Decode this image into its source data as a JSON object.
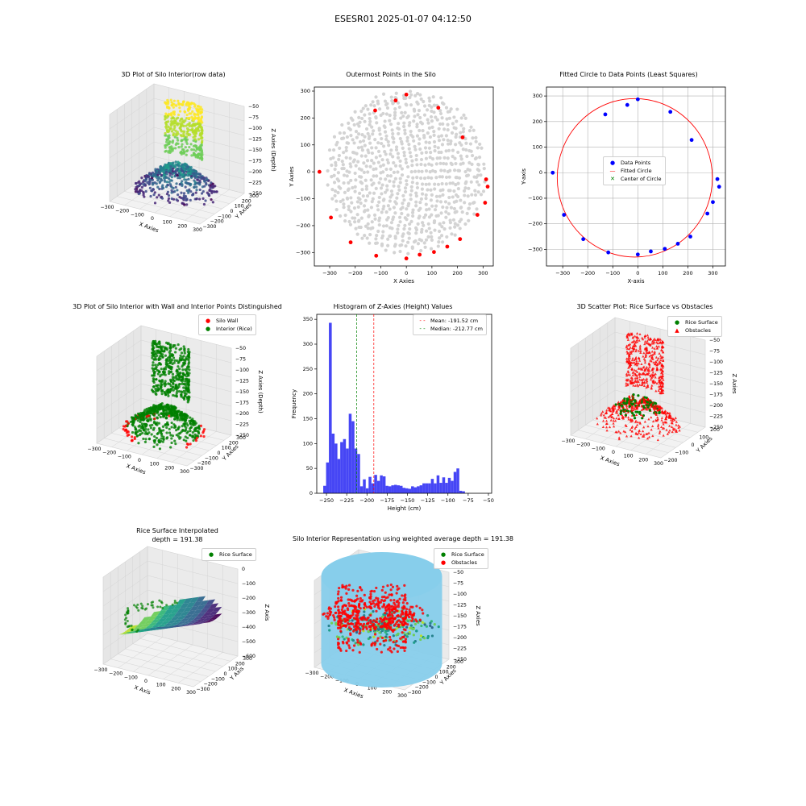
{
  "suptitle": "ESESR01 2025-01-07 04:12:50",
  "colors": {
    "rice": "#008000",
    "wall": "#ff0000",
    "data_points": "#0000ff",
    "gray": "#d3d3d3",
    "hist": "#4646f5",
    "cyl": "#87ceeb"
  },
  "p1": {
    "title": "3D Plot of Silo Interior(row data)",
    "xlabel": "X Axies",
    "ylabel": "Y Axies",
    "zlabel": "Z Axies (Depth)",
    "xticks": [
      "−300",
      "−200",
      "−100",
      "0",
      "100",
      "200",
      "300"
    ],
    "yticks": [
      "−300",
      "−200",
      "−100",
      "0",
      "100",
      "200",
      "300"
    ],
    "zticks": [
      "−50",
      "−75",
      "−100",
      "−125",
      "−150",
      "−175",
      "−200",
      "−225",
      "−250"
    ]
  },
  "p2": {
    "title": "Outermost Points in the Silo",
    "xlabel": "X Axies",
    "ylabel": "Y Axies",
    "xticks": [
      "−300",
      "−200",
      "−100",
      "0",
      "100",
      "200",
      "300"
    ],
    "yticks": [
      "300",
      "200",
      "100",
      "0",
      "−100",
      "−200",
      "−300"
    ]
  },
  "p3": {
    "title": "Fitted Circle to Data Points (Least Squares)",
    "xlabel": "X-axis",
    "ylabel": "Y-axis",
    "xticks": [
      "−300",
      "−200",
      "−100",
      "0",
      "100",
      "200",
      "300"
    ],
    "yticks": [
      "300",
      "200",
      "100",
      "0",
      "−100",
      "−200",
      "−300"
    ],
    "legend": [
      "Data Points",
      "Fitted Circle",
      "Center of Circle"
    ]
  },
  "p4": {
    "title": "3D Plot of Silo Interior with Wall and Interior Points Distinguished",
    "xlabel": "X Axies",
    "ylabel": "Y Axies",
    "zlabel": "Z Axies (Depth)",
    "xticks": [
      "−300",
      "−200",
      "−100",
      "0",
      "100",
      "200",
      "300"
    ],
    "yticks": [
      "−300",
      "−200",
      "−100",
      "0",
      "100",
      "200",
      "300"
    ],
    "zticks": [
      "−50",
      "−75",
      "−100",
      "−125",
      "−150",
      "−175",
      "−200",
      "−225",
      "−250"
    ],
    "legend": [
      "Silo Wall",
      "Interior (Rice)"
    ]
  },
  "p5": {
    "title": "Histogram of Z-Axies (Height) Values",
    "xlabel": "Height (cm)",
    "ylabel": "Frequency",
    "xticks": [
      "−250",
      "−225",
      "−200",
      "−175",
      "−150",
      "−125",
      "−100",
      "−75",
      "−50"
    ],
    "yticks": [
      "350",
      "300",
      "250",
      "200",
      "150",
      "100",
      "50",
      "0"
    ],
    "legend": [
      "Mean: -191.52 cm",
      "Median: -212.77 cm"
    ]
  },
  "p6": {
    "title": "3D Scatter Plot: Rice Surface vs Obstacles",
    "xlabel": "X Axies",
    "ylabel": "Y Axies",
    "zlabel": "Z Axies",
    "xticks": [
      "−300",
      "−200",
      "−100",
      "0",
      "100",
      "200",
      "300"
    ],
    "yticks": [
      "−200",
      "−100",
      "0",
      "100",
      "200"
    ],
    "zticks": [
      "−50",
      "−75",
      "−100",
      "−125",
      "−150",
      "−175",
      "−200",
      "−225",
      "−250"
    ],
    "legend": [
      "Rice Surface",
      "Obstacles"
    ]
  },
  "p7": {
    "title": "Rice Surface Interpolated",
    "subtitle": "depth = 191.38",
    "xlabel": "X Axis",
    "ylabel": "Y Axis",
    "zlabel": "Z Axis",
    "xticks": [
      "−300",
      "−200",
      "−100",
      "0",
      "100",
      "200",
      "300"
    ],
    "yticks": [
      "−300",
      "−200",
      "−100",
      "0",
      "100",
      "200",
      "300"
    ],
    "zticks": [
      "0",
      "−100",
      "−200",
      "−300",
      "−400",
      "−500",
      "−600"
    ],
    "legend": [
      "Rice Surface"
    ]
  },
  "p8": {
    "title": "Silo Interior Representation using weighted average depth = 191.38",
    "xlabel": "X Axies",
    "ylabel": "Y Axies",
    "zlabel": "Z Axies",
    "xticks": [
      "−300",
      "−200",
      "−100",
      "0",
      "100",
      "200",
      "300"
    ],
    "yticks": [
      "−300",
      "−200",
      "−100",
      "0",
      "100",
      "200",
      "300"
    ],
    "zticks": [
      "−50",
      "−75",
      "−100",
      "−125",
      "−150",
      "−175",
      "−200",
      "−225",
      "−250"
    ],
    "legend": [
      "Rice Surface",
      "Obstacles"
    ]
  },
  "chart_data": [
    {
      "type": "scatter",
      "title": "3D Plot of Silo Interior(row data)",
      "xlabel": "X Axies",
      "ylabel": "Y Axies",
      "zlabel": "Z Axies (Depth)",
      "xlim": [
        -330,
        330
      ],
      "ylim": [
        -330,
        330
      ],
      "zlim": [
        -260,
        -40
      ],
      "grid": true
    },
    {
      "type": "scatter",
      "title": "Outermost Points in the Silo",
      "xlabel": "X Axies",
      "ylabel": "Y Axies",
      "xlim": [
        -360,
        340
      ],
      "ylim": [
        -350,
        315
      ],
      "grid": false,
      "series": [
        {
          "name": "outermost",
          "color": "#ff0000",
          "points": [
            [
              -340,
              0
            ],
            [
              -295,
              -170
            ],
            [
              -218,
              -262
            ],
            [
              -118,
              -312
            ],
            [
              0,
              -322
            ],
            [
              52,
              -308
            ],
            [
              108,
              -298
            ],
            [
              160,
              -278
            ],
            [
              210,
              -250
            ],
            [
              278,
              -160
            ],
            [
              308,
              -115
            ],
            [
              312,
              -28
            ],
            [
              318,
              -55
            ],
            [
              220,
              128
            ],
            [
              125,
              238
            ],
            [
              -122,
              228
            ],
            [
              -42,
              265
            ],
            [
              0,
              287
            ]
          ]
        }
      ]
    },
    {
      "type": "scatter",
      "title": "Fitted Circle to Data Points (Least Squares)",
      "xlabel": "X-axis",
      "ylabel": "Y-axis",
      "xlim": [
        -365,
        350
      ],
      "ylim": [
        -365,
        335
      ],
      "grid": true,
      "series": [
        {
          "name": "Data Points",
          "color": "#0000ff",
          "points": [
            [
              -340,
              0
            ],
            [
              -295,
              -165
            ],
            [
              -218,
              -260
            ],
            [
              -118,
              -312
            ],
            [
              0,
              -320
            ],
            [
              52,
              -308
            ],
            [
              108,
              -298
            ],
            [
              160,
              -278
            ],
            [
              210,
              -250
            ],
            [
              278,
              -160
            ],
            [
              300,
              -115
            ],
            [
              318,
              -25
            ],
            [
              325,
              -55
            ],
            [
              215,
              128
            ],
            [
              130,
              238
            ],
            [
              -130,
              228
            ],
            [
              -42,
              265
            ],
            [
              0,
              287
            ]
          ]
        },
        {
          "name": "Fitted Circle",
          "color": "#ff0000",
          "center": [
            -12,
            -20
          ],
          "radius": 310
        },
        {
          "name": "Center of Circle",
          "color": "#008000",
          "points": [
            [
              -12,
              -20
            ]
          ]
        }
      ]
    },
    {
      "type": "scatter",
      "title": "3D Plot of Silo Interior with Wall and Interior Points Distinguished",
      "xlabel": "X Axies",
      "ylabel": "Y Axies",
      "zlabel": "Z Axies (Depth)",
      "xlim": [
        -330,
        330
      ],
      "ylim": [
        -330,
        330
      ],
      "zlim": [
        -260,
        -40
      ],
      "series": [
        {
          "name": "Silo Wall"
        },
        {
          "name": "Interior (Rice)"
        }
      ]
    },
    {
      "type": "bar",
      "title": "Histogram of Z-Axies (Height) Values",
      "xlabel": "Height (cm)",
      "ylabel": "Frequency",
      "xlim": [
        -262,
        -46
      ],
      "ylim": [
        0,
        360
      ],
      "bin_edges_start": -254,
      "bin_width": 3.5,
      "values": [
        15,
        62,
        343,
        120,
        100,
        69,
        103,
        109,
        90,
        160,
        145,
        90,
        79,
        14,
        28,
        10,
        33,
        20,
        37,
        25,
        36,
        34,
        15,
        14,
        16,
        17,
        16,
        15,
        11,
        10,
        9,
        14,
        12,
        14,
        16,
        20,
        20,
        20,
        29,
        20,
        36,
        21,
        32,
        21,
        31,
        25,
        43,
        50,
        5,
        4
      ],
      "mean": -191.52,
      "median": -212.77,
      "series": [
        {
          "name": "Mean: -191.52 cm"
        },
        {
          "name": "Median: -212.77 cm"
        }
      ]
    },
    {
      "type": "scatter",
      "title": "3D Scatter Plot: Rice Surface vs Obstacles",
      "xlabel": "X Axies",
      "ylabel": "Y Axies",
      "zlabel": "Z Axies",
      "xlim": [
        -330,
        330
      ],
      "ylim": [
        -260,
        260
      ],
      "zlim": [
        -260,
        -40
      ],
      "series": [
        {
          "name": "Rice Surface"
        },
        {
          "name": "Obstacles"
        }
      ]
    },
    {
      "type": "area",
      "title": "Rice Surface Interpolated",
      "subtitle": "depth = 191.38",
      "xlabel": "X Axis",
      "ylabel": "Y Axis",
      "zlabel": "Z Axis",
      "xlim": [
        -330,
        330
      ],
      "ylim": [
        -330,
        330
      ],
      "zlim": [
        -600,
        0
      ],
      "series": [
        {
          "name": "Rice Surface"
        }
      ]
    },
    {
      "type": "scatter",
      "title": "Silo Interior Representation using weighted average depth = 191.38",
      "xlabel": "X Axies",
      "ylabel": "Y Axies",
      "zlabel": "Z Axies",
      "xlim": [
        -330,
        330
      ],
      "ylim": [
        -330,
        330
      ],
      "zlim": [
        -260,
        -40
      ],
      "series": [
        {
          "name": "Rice Surface"
        },
        {
          "name": "Obstacles"
        }
      ]
    }
  ]
}
